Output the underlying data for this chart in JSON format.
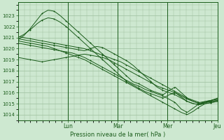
{
  "title": "Pression niveau de la mer( hPa )",
  "ylim": [
    1013.5,
    1024.2
  ],
  "yticks": [
    1014,
    1015,
    1016,
    1017,
    1018,
    1019,
    1020,
    1021,
    1022,
    1023
  ],
  "day_labels": [
    "Lun",
    "Mar",
    "Mer",
    "Jeu"
  ],
  "day_positions": [
    24,
    48,
    72,
    96
  ],
  "xlim": [
    0,
    96
  ],
  "bg_color": "#cde8d0",
  "grid_color": "#9dbf9e",
  "line_color": "#1a5c1a",
  "marker": "+",
  "series": [
    [
      1020.8,
      1021.2,
      1021.8,
      1022.5,
      1023.2,
      1023.5,
      1023.4,
      1023.0,
      1022.5,
      1022.0,
      1021.5,
      1021.0,
      1020.5,
      1020.0,
      1019.5,
      1019.0,
      1018.5,
      1018.0,
      1017.5,
      1017.0,
      1016.8,
      1016.5,
      1016.2,
      1016.0,
      1015.8,
      1016.2,
      1016.5,
      1016.0,
      1015.5,
      1015.2,
      1015.0,
      1015.1,
      1015.2,
      1015.3
    ],
    [
      1021.0,
      1021.3,
      1021.7,
      1022.2,
      1022.6,
      1022.8,
      1022.7,
      1022.4,
      1022.0,
      1021.5,
      1021.0,
      1020.5,
      1020.0,
      1019.5,
      1019.0,
      1018.5,
      1018.0,
      1017.5,
      1017.0,
      1016.7,
      1016.4,
      1016.1,
      1015.9,
      1015.7,
      1015.5,
      1015.8,
      1016.0,
      1015.6,
      1015.2,
      1015.0,
      1014.9,
      1015.0,
      1015.1,
      1015.2
    ],
    [
      1020.5,
      1020.4,
      1020.3,
      1020.2,
      1020.1,
      1020.0,
      1019.9,
      1019.8,
      1019.7,
      1019.6,
      1019.4,
      1019.2,
      1018.9,
      1018.6,
      1018.3,
      1018.0,
      1017.7,
      1017.4,
      1017.1,
      1016.8,
      1016.6,
      1016.3,
      1016.1,
      1015.9,
      1015.7,
      1015.4,
      1015.1,
      1014.5,
      1014.2,
      1014.6,
      1015.0,
      1015.2,
      1015.3,
      1015.4
    ],
    [
      1020.7,
      1020.6,
      1020.5,
      1020.4,
      1020.3,
      1020.2,
      1020.0,
      1019.8,
      1019.6,
      1019.4,
      1019.2,
      1019.0,
      1018.7,
      1018.4,
      1018.1,
      1017.8,
      1017.5,
      1017.2,
      1016.9,
      1016.6,
      1016.3,
      1016.0,
      1015.7,
      1015.4,
      1015.1,
      1014.8,
      1014.5,
      1014.2,
      1014.0,
      1014.3,
      1014.7,
      1015.0,
      1015.1,
      1015.2
    ],
    [
      1020.9,
      1020.8,
      1020.7,
      1020.6,
      1020.5,
      1020.4,
      1020.3,
      1020.2,
      1020.1,
      1020.0,
      1019.9,
      1019.8,
      1020.0,
      1020.2,
      1020.1,
      1019.8,
      1019.5,
      1019.2,
      1018.9,
      1018.5,
      1018.0,
      1017.5,
      1017.0,
      1016.5,
      1016.2,
      1016.0,
      1015.8,
      1015.5,
      1015.2,
      1015.0,
      1014.9,
      1015.1,
      1015.3,
      1015.4
    ],
    [
      1019.2,
      1019.1,
      1019.0,
      1018.9,
      1018.8,
      1018.9,
      1019.0,
      1019.1,
      1019.2,
      1019.3,
      1019.4,
      1019.5,
      1019.4,
      1019.3,
      1019.2,
      1019.0,
      1018.7,
      1018.4,
      1018.1,
      1017.8,
      1017.5,
      1017.2,
      1016.9,
      1016.6,
      1016.4,
      1016.2,
      1016.0,
      1015.7,
      1015.4,
      1015.2,
      1015.0,
      1015.1,
      1015.2,
      1015.3
    ],
    [
      1021.1,
      1021.0,
      1020.9,
      1020.8,
      1020.7,
      1020.6,
      1020.5,
      1020.4,
      1020.3,
      1020.2,
      1020.1,
      1020.0,
      1019.8,
      1019.6,
      1019.4,
      1019.2,
      1019.0,
      1018.8,
      1018.5,
      1018.2,
      1017.9,
      1017.6,
      1017.3,
      1017.0,
      1016.7,
      1016.4,
      1016.1,
      1015.8,
      1015.5,
      1015.3,
      1015.1,
      1015.2,
      1015.3,
      1015.5
    ]
  ]
}
